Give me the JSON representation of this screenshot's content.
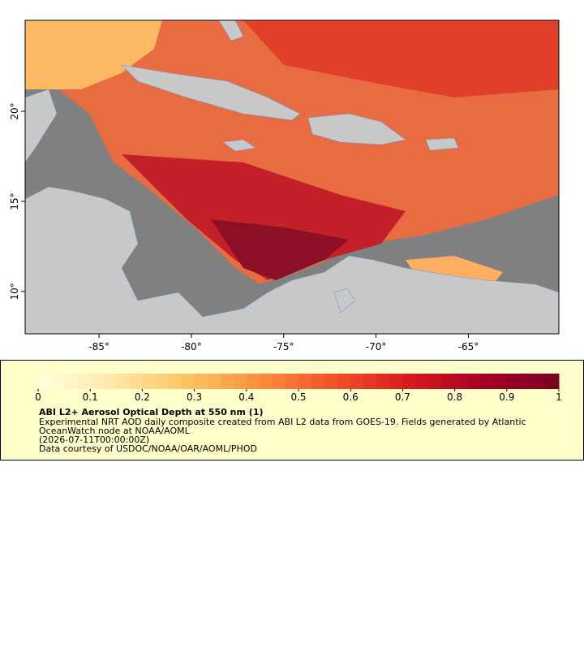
{
  "map": {
    "lon_lim": [
      -89,
      -60.1
    ],
    "lat_lim": [
      7.65,
      25.05
    ],
    "lon_ticks": [
      {
        "value": -85,
        "label": "-85°"
      },
      {
        "value": -80,
        "label": "-80°"
      },
      {
        "value": -75,
        "label": "-75°"
      },
      {
        "value": -70,
        "label": "-70°"
      },
      {
        "value": -65,
        "label": "-65°"
      }
    ],
    "lat_ticks": [
      {
        "value": 10,
        "label": "10°"
      },
      {
        "value": 15,
        "label": "15°"
      },
      {
        "value": 20,
        "label": "20°"
      }
    ],
    "ocean_color": "#808080",
    "land_color": "#c8c8c8"
  },
  "legend": {
    "colorbar_lim": [
      0,
      1
    ],
    "colorbar_ticks": [
      0,
      0.1,
      0.2,
      0.3,
      0.4,
      0.5,
      0.6,
      0.7,
      0.8,
      0.9,
      1
    ],
    "colormap": [
      "#ffffe0",
      "#fee8a8",
      "#fdc462",
      "#fd8d3c",
      "#f0502a",
      "#d7191c",
      "#a50026",
      "#7a0020"
    ],
    "title": "ABI L2+ Aerosol Optical Depth at 550 nm (1)",
    "description": [
      "Experimental NRT AOD daily composite created from ABI L2 data from GOES-19. Fields generated by Atlantic",
      "OceanWatch node at NOAA/AOML"
    ],
    "time": "(2026-07-11T00:00:00Z)",
    "credit": "Data courtesy of USDOC/NOAA/OAR/AOML/PHOD"
  }
}
